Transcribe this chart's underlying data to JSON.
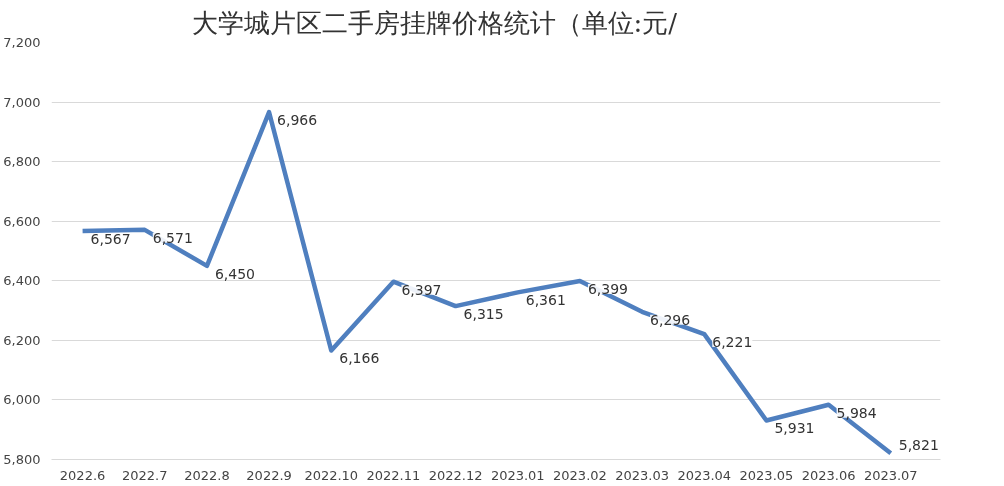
{
  "chart_data": {
    "type": "line",
    "title": "大学城片区二手房挂牌价格统计（单位:元/",
    "categories": [
      "2022.6",
      "2022.7",
      "2022.8",
      "2022.9",
      "2022.10",
      "2022.11",
      "2022.12",
      "2023.01",
      "2023.02",
      "2023.03",
      "2023.04",
      "2023.05",
      "2023.06",
      "2023.07"
    ],
    "series": [
      {
        "color": "#4f7fbf",
        "values": [
          6567,
          6571,
          6450,
          6966,
          6166,
          6397,
          6315,
          6361,
          6399,
          6296,
          6221,
          5931,
          5984,
          5821
        ],
        "value_labels": [
          "6,567",
          "6,571",
          "6,450",
          "6,966",
          "6,166",
          "6,397",
          "6,315",
          "6,361",
          "6,399",
          "6,296",
          "6,221",
          "5,931",
          "5,984",
          "5,821"
        ]
      }
    ],
    "ylim": [
      5800,
      7200
    ],
    "yticks": [
      {
        "value": 5800,
        "label": "5,800"
      },
      {
        "value": 6000,
        "label": "6,000"
      },
      {
        "value": 6200,
        "label": "6,200"
      },
      {
        "value": 6400,
        "label": "6,400"
      },
      {
        "value": 6600,
        "label": "6,600"
      },
      {
        "value": 6800,
        "label": "6,800"
      },
      {
        "value": 7000,
        "label": "7,000"
      },
      {
        "value": 7200,
        "label": "7,200"
      }
    ],
    "grid": "y",
    "marker": "none",
    "line_style": "solid"
  }
}
